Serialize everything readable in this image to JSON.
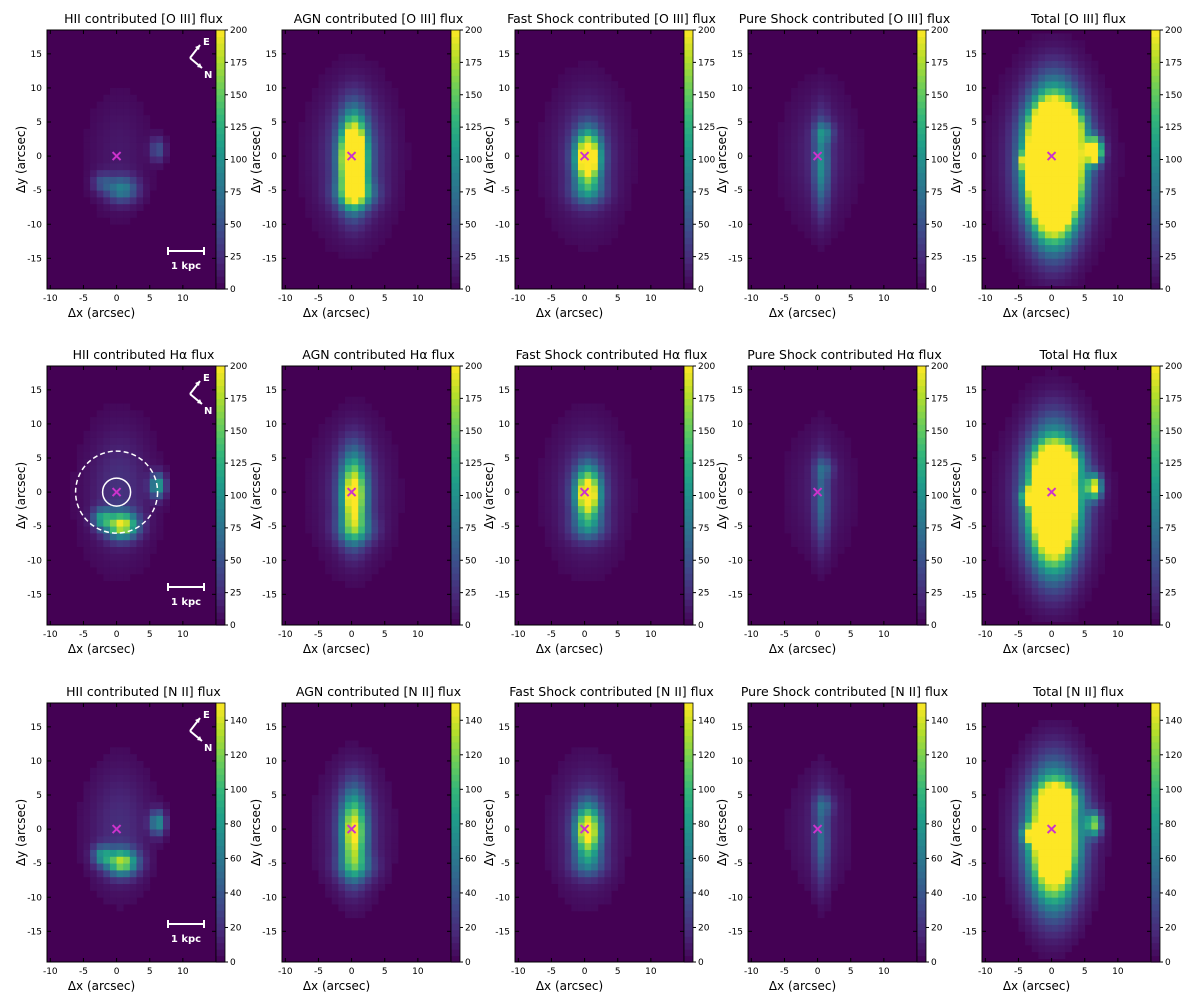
{
  "colormap": [
    "#440154",
    "#482878",
    "#3e4989",
    "#31688e",
    "#26828e",
    "#1f9e89",
    "#35b779",
    "#6ece58",
    "#b5de2b",
    "#fde725"
  ],
  "marker_color": "#cc33cc",
  "annotation_color": "#ffffff",
  "compass": {
    "e_label": "E",
    "n_label": "N"
  },
  "scalebar_label": "1 kpc",
  "chart_data": {
    "type": "heatmap",
    "xlabel": "Δx (arcsec)",
    "ylabel": "Δy (arcsec)",
    "xlim": [
      -10.5,
      15
    ],
    "ylim": [
      -19.5,
      18.5
    ],
    "xticks": [
      -10,
      -5,
      0,
      5,
      10
    ],
    "yticks": [
      -15,
      -10,
      -5,
      0,
      5,
      10,
      15
    ],
    "rows": [
      {
        "cbar_max": 200,
        "cbar_ticks": [
          0,
          25,
          50,
          75,
          100,
          125,
          150,
          175,
          200
        ],
        "panels": [
          {
            "title": "HII contributed [O III] flux",
            "component": "hii",
            "scale": 0.45
          },
          {
            "title": "AGN contributed [O III] flux",
            "component": "agn",
            "scale": 1.6
          },
          {
            "title": "Fast Shock contributed [O III] flux",
            "component": "fastshock",
            "scale": 1.1
          },
          {
            "title": "Pure Shock contributed [O III] flux",
            "component": "pureshock",
            "scale": 0.7
          },
          {
            "title": "Total [O III] flux",
            "component": "total",
            "scale": 2.4
          }
        ]
      },
      {
        "cbar_max": 200,
        "cbar_ticks": [
          0,
          25,
          50,
          75,
          100,
          125,
          150,
          175,
          200
        ],
        "panels": [
          {
            "title": "HII contributed Hα flux",
            "component": "hii",
            "scale": 1.0
          },
          {
            "title": "AGN contributed Hα flux",
            "component": "agn",
            "scale": 1.0
          },
          {
            "title": "Fast Shock contributed Hα flux",
            "component": "fastshock",
            "scale": 1.0
          },
          {
            "title": "Pure Shock contributed Hα flux",
            "component": "pureshock",
            "scale": 0.5
          },
          {
            "title": "Total Hα flux",
            "component": "total",
            "scale": 1.5
          }
        ]
      },
      {
        "cbar_max": 150,
        "cbar_ticks": [
          0,
          20,
          40,
          60,
          80,
          100,
          120,
          140
        ],
        "panels": [
          {
            "title": "HII contributed [N II] flux",
            "component": "hii",
            "scale": 0.9
          },
          {
            "title": "AGN contributed [N II] flux",
            "component": "agn",
            "scale": 0.9
          },
          {
            "title": "Fast Shock contributed [N II] flux",
            "component": "fastshock",
            "scale": 0.9
          },
          {
            "title": "Pure Shock contributed [N II] flux",
            "component": "pureshock",
            "scale": 0.5
          },
          {
            "title": "Total [N II] flux",
            "component": "total",
            "scale": 1.2
          }
        ]
      }
    ]
  }
}
